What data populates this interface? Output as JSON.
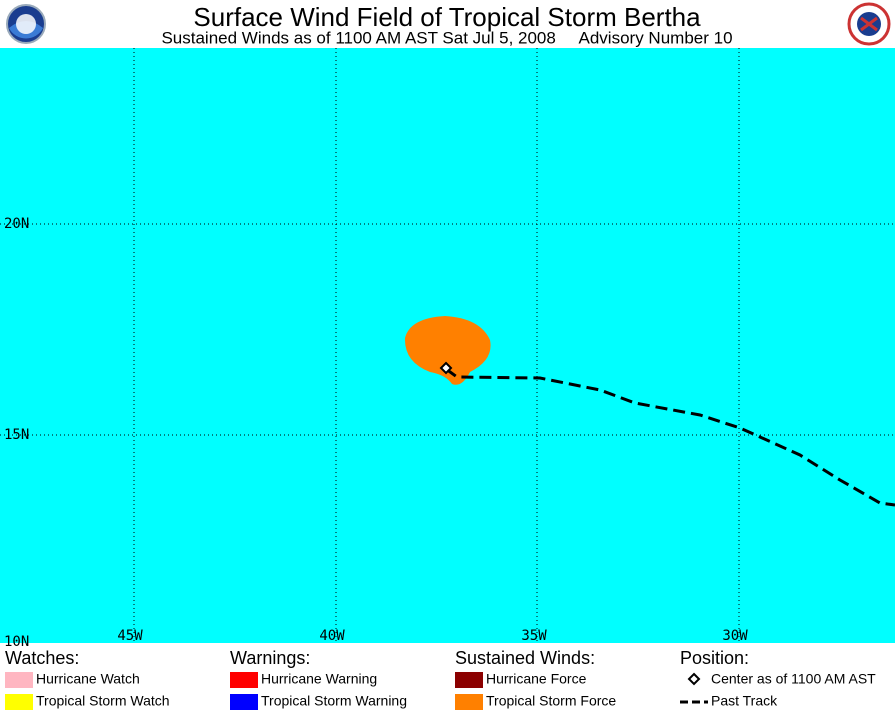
{
  "header": {
    "title": "Surface Wind Field of Tropical Storm Bertha",
    "subtitle": "Sustained Winds as of 1100 AM AST Sat Jul 5, 2008     Advisory Number 10"
  },
  "map": {
    "lat_labels": [
      "20N",
      "15N",
      "10N"
    ],
    "lon_labels": [
      "45W",
      "40W",
      "35W",
      "30W"
    ]
  },
  "legend": [
    {
      "heading": "Watches:",
      "items": [
        "Hurricane Watch",
        "Tropical Storm Watch"
      ]
    },
    {
      "heading": "Warnings:",
      "items": [
        "Hurricane Warning",
        "Tropical Storm Warning"
      ]
    },
    {
      "heading": "Sustained Winds:",
      "items": [
        "Hurricane Force",
        "Tropical Storm Force"
      ]
    },
    {
      "heading": "Position:",
      "items": [
        "Center as of 1100 AM AST",
        "Past Track"
      ]
    }
  ]
}
